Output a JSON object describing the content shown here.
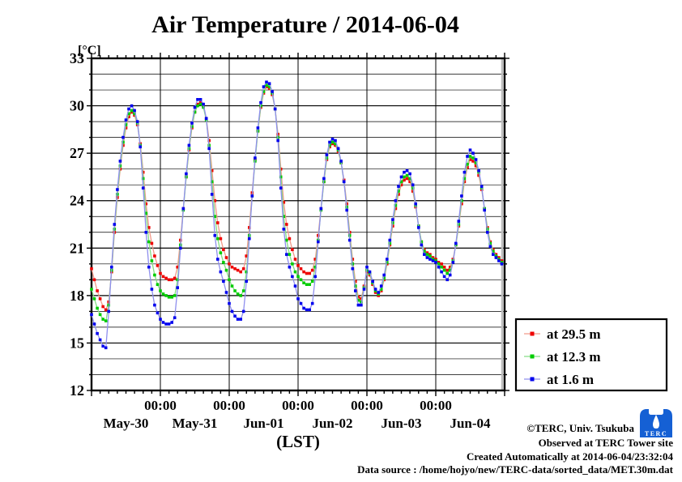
{
  "title": "Air Temperature / 2014-06-04",
  "y_axis_unit": "[°C]",
  "x_axis_label": "(LST)",
  "legend": [
    {
      "label": "at 29.5 m",
      "color": "#ee0000"
    },
    {
      "label": "at 12.3 m",
      "color": "#00cc00"
    },
    {
      "label": "at 1.6 m",
      "color": "#0000ee"
    }
  ],
  "footer": {
    "copyright": "©TERC, Univ. Tsukuba",
    "observed": "Observed at TERC Tower site",
    "created": "Created Automatically at 2014-06-04/23:32:04",
    "datasource": "Data source : /home/hojyo/new/TERC-data/sorted_data/MET.30m.dat",
    "logo_text": "TERC"
  },
  "chart_data": {
    "type": "line",
    "title": "Air Temperature / 2014-06-04",
    "ylabel": "[°C]",
    "xlabel": "(LST)",
    "ylim": [
      12,
      33
    ],
    "y_major_ticks": [
      33,
      30,
      27,
      24,
      21,
      18,
      15,
      12
    ],
    "y_minor_step": 1,
    "grid": true,
    "legend_position": "outside-right-bottom",
    "x_unit": "hours since 2014-05-30 00:00 LST",
    "x_span_hours": 144,
    "x_minor_tick_hours": 3,
    "x_major_tick_labels": [
      "00:00",
      "00:00",
      "00:00",
      "00:00",
      "00:00"
    ],
    "x_day_labels": [
      "May-30",
      "May-31",
      "Jun-01",
      "Jun-02",
      "Jun-03",
      "Jun-04"
    ],
    "series": [
      {
        "name": "at 29.5 m",
        "marker_color": "#ee0000",
        "line_color": "#f29a8a",
        "values": [
          19.7,
          19.0,
          18.3,
          17.8,
          17.3,
          17.1,
          17.6,
          19.5,
          22.0,
          24.2,
          26.0,
          27.5,
          28.6,
          29.3,
          29.6,
          29.4,
          28.8,
          27.6,
          25.8,
          23.8,
          22.3,
          21.3,
          20.5,
          19.9,
          19.4,
          19.2,
          19.1,
          19.0,
          19.0,
          19.1,
          19.8,
          21.5,
          23.5,
          25.5,
          27.2,
          28.6,
          29.6,
          30.1,
          30.2,
          30.0,
          29.2,
          27.8,
          25.9,
          24.0,
          22.6,
          21.6,
          20.9,
          20.4,
          20.0,
          19.8,
          19.7,
          19.6,
          19.5,
          19.7,
          20.5,
          22.3,
          24.5,
          26.6,
          28.4,
          29.9,
          30.8,
          31.2,
          31.1,
          30.7,
          29.8,
          28.2,
          26.0,
          23.9,
          22.5,
          21.6,
          20.9,
          20.3,
          19.9,
          19.7,
          19.5,
          19.4,
          19.4,
          19.6,
          20.3,
          21.8,
          23.5,
          25.2,
          26.6,
          27.4,
          27.6,
          27.5,
          27.1,
          26.4,
          25.3,
          23.8,
          22.0,
          20.3,
          18.9,
          17.9,
          17.8,
          18.6,
          19.5,
          19.3,
          18.7,
          18.2,
          18.0,
          18.3,
          19.0,
          20.0,
          21.2,
          22.4,
          23.5,
          24.4,
          25.0,
          25.3,
          25.4,
          25.2,
          24.6,
          23.6,
          22.4,
          21.4,
          20.9,
          20.7,
          20.6,
          20.4,
          20.3,
          20.1,
          20.0,
          19.8,
          19.6,
          19.8,
          20.3,
          21.2,
          22.4,
          23.8,
          25.2,
          26.1,
          26.6,
          26.5,
          26.2,
          25.6,
          24.7,
          23.5,
          22.3,
          21.4,
          20.9,
          20.6,
          20.4,
          20.2
        ]
      },
      {
        "name": "at 12.3 m",
        "marker_color": "#00cc00",
        "line_color": "#86dd86",
        "values": [
          18.4,
          17.8,
          17.2,
          16.8,
          16.5,
          16.4,
          17.4,
          19.6,
          22.2,
          24.4,
          26.2,
          27.7,
          28.8,
          29.5,
          29.7,
          29.5,
          28.9,
          27.5,
          25.4,
          23.2,
          21.4,
          20.2,
          19.3,
          18.7,
          18.3,
          18.1,
          18.0,
          17.9,
          17.9,
          18.0,
          19.0,
          21.2,
          23.4,
          25.5,
          27.3,
          28.7,
          29.6,
          30.0,
          30.1,
          29.9,
          29.1,
          27.5,
          25.2,
          23.0,
          21.6,
          20.7,
          20.1,
          19.6,
          19.0,
          18.6,
          18.3,
          18.1,
          18.0,
          18.3,
          19.5,
          21.8,
          24.3,
          26.5,
          28.4,
          30.0,
          30.9,
          31.3,
          31.2,
          30.8,
          29.8,
          28.0,
          25.5,
          23.0,
          21.5,
          20.6,
          20.0,
          19.5,
          19.2,
          19.0,
          18.8,
          18.7,
          18.7,
          18.9,
          19.8,
          21.5,
          23.4,
          25.2,
          26.7,
          27.5,
          27.7,
          27.6,
          27.2,
          26.4,
          25.2,
          23.6,
          21.8,
          20.0,
          18.6,
          17.7,
          17.6,
          18.5,
          19.6,
          19.4,
          18.8,
          18.3,
          18.1,
          18.4,
          19.1,
          20.1,
          21.3,
          22.6,
          23.7,
          24.6,
          25.2,
          25.5,
          25.6,
          25.4,
          24.8,
          23.7,
          22.4,
          21.4,
          20.8,
          20.6,
          20.5,
          20.3,
          20.2,
          20.0,
          19.8,
          19.6,
          19.4,
          19.6,
          20.2,
          21.2,
          22.5,
          24.0,
          25.4,
          26.3,
          26.8,
          26.7,
          26.4,
          25.8,
          24.8,
          23.5,
          22.2,
          21.3,
          20.8,
          20.5,
          20.3,
          20.1
        ]
      },
      {
        "name": "at 1.6 m",
        "marker_color": "#0000ee",
        "line_color": "#8f8fee",
        "values": [
          16.8,
          16.2,
          15.6,
          15.2,
          14.8,
          14.7,
          17.0,
          19.8,
          22.5,
          24.7,
          26.5,
          28.0,
          29.1,
          29.8,
          30.0,
          29.7,
          29.0,
          27.4,
          24.8,
          22.0,
          19.8,
          18.4,
          17.4,
          16.9,
          16.5,
          16.3,
          16.2,
          16.2,
          16.3,
          16.6,
          18.5,
          21.0,
          23.5,
          25.7,
          27.5,
          28.9,
          29.9,
          30.4,
          30.4,
          30.1,
          29.2,
          27.3,
          24.4,
          21.8,
          20.3,
          19.5,
          18.9,
          18.2,
          17.5,
          17.0,
          16.7,
          16.5,
          16.5,
          17.0,
          18.9,
          21.6,
          24.3,
          26.7,
          28.6,
          30.2,
          31.2,
          31.5,
          31.4,
          30.9,
          29.8,
          27.8,
          24.8,
          22.2,
          20.6,
          19.8,
          19.2,
          18.6,
          17.8,
          17.5,
          17.2,
          17.1,
          17.1,
          17.5,
          19.2,
          21.4,
          23.5,
          25.4,
          26.9,
          27.7,
          27.9,
          27.8,
          27.3,
          26.5,
          25.2,
          23.4,
          21.5,
          19.7,
          18.3,
          17.4,
          17.4,
          18.4,
          19.8,
          19.5,
          18.9,
          18.4,
          18.2,
          18.6,
          19.3,
          20.3,
          21.5,
          22.8,
          24.0,
          24.9,
          25.5,
          25.8,
          25.9,
          25.7,
          25.0,
          23.8,
          22.3,
          21.2,
          20.6,
          20.4,
          20.3,
          20.2,
          20.1,
          19.8,
          19.5,
          19.2,
          19.0,
          19.3,
          20.1,
          21.3,
          22.7,
          24.3,
          25.8,
          26.8,
          27.2,
          27.0,
          26.6,
          25.9,
          24.9,
          23.4,
          22.0,
          21.1,
          20.6,
          20.4,
          20.2,
          20.0
        ]
      }
    ]
  }
}
